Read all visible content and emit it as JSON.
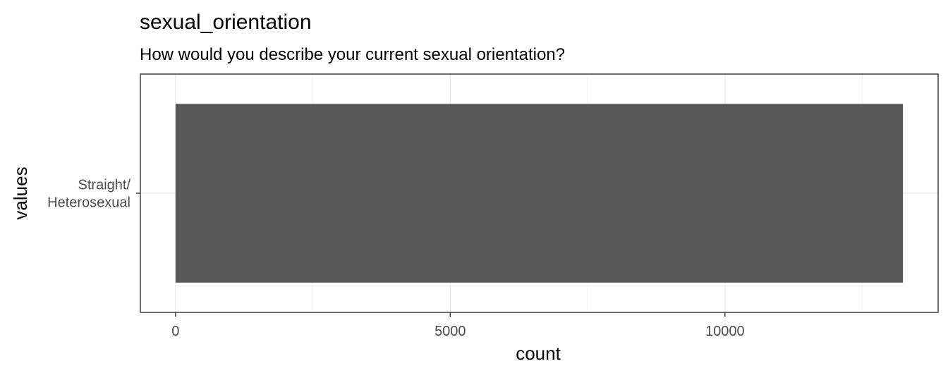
{
  "chart_data": {
    "type": "bar",
    "orientation": "horizontal",
    "title": "sexual_orientation",
    "subtitle": "How would you describe your current sexual orientation?",
    "xlabel": "count",
    "ylabel": "values",
    "categories": [
      "Straight/\nHeterosexual"
    ],
    "values": [
      13240
    ],
    "xlim": [
      -640,
      13880
    ],
    "xticks": [
      0,
      5000,
      10000
    ],
    "xtick_labels": [
      "0",
      "5000",
      "10000"
    ],
    "grid": true,
    "legend": "none",
    "colors": {
      "bar": "#595959",
      "grid_major": "#ebebeb",
      "grid_minor": "#f3f3f3",
      "panel_border": "#333333",
      "text": "#000000",
      "tick_text": "#4d4d4d"
    }
  }
}
